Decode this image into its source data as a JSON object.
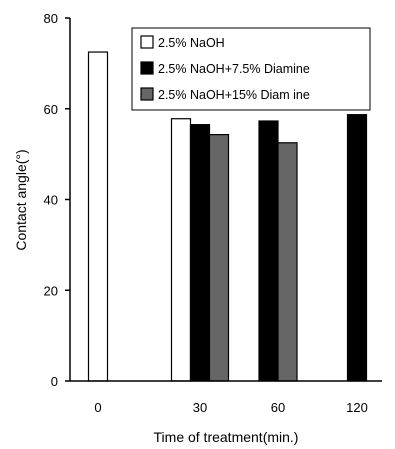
{
  "chart_data": {
    "type": "bar",
    "categories": [
      "0",
      "30",
      "60",
      "120"
    ],
    "series": [
      {
        "name": "2.5%  NaOH",
        "color": "#ffffff",
        "values": [
          72.5,
          57.8,
          null,
          null
        ]
      },
      {
        "name": "2.5%  NaOH+7.5% Diamine",
        "color": "#000000",
        "values": [
          null,
          56.5,
          57.3,
          58.7
        ]
      },
      {
        "name": "2.5%  NaOH+15% Diam ine",
        "color": "#666666",
        "values": [
          null,
          54.3,
          52.5,
          null
        ]
      }
    ],
    "xlabel": "Time of treatment(min.)",
    "ylabel": "Contact angle(°)",
    "ylim": [
      0,
      80
    ],
    "yticks": [
      "0",
      "20",
      "40",
      "60",
      "80"
    ],
    "legend_position": "top-right",
    "grid": false
  }
}
